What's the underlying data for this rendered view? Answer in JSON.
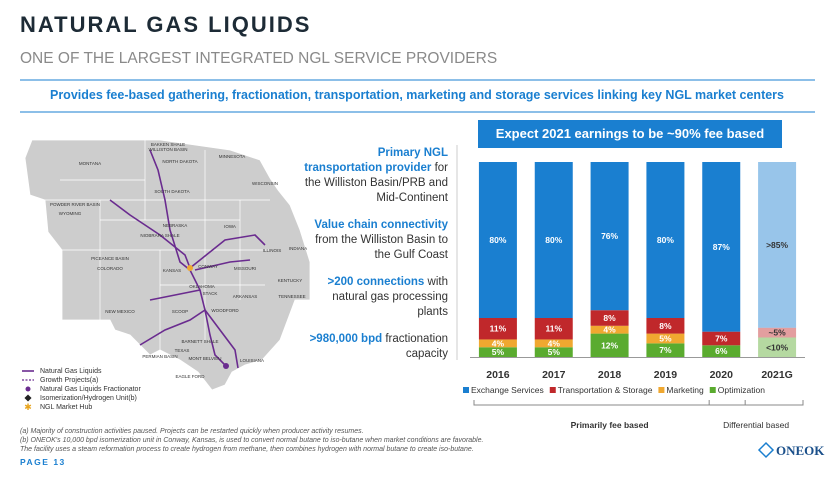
{
  "header": {
    "title": "NATURAL GAS LIQUIDS",
    "subtitle": "ONE OF THE LARGEST INTEGRATED NGL SERVICE PROVIDERS",
    "tagline": "Provides fee-based gathering, fractionation, transportation, marketing and storage services linking key NGL market centers"
  },
  "map": {
    "labels": [
      "BAKKEN SHALE",
      "WILLISTON BASIN",
      "MONTANA",
      "NORTH DAKOTA",
      "MINNESOTA",
      "SOUTH DAKOTA",
      "WISCONSIN",
      "POWDER RIVER BASIN",
      "WYOMING",
      "NEBRASKA",
      "NIOBRARA SHALE",
      "IOWA",
      "ILLINOIS",
      "INDIANA",
      "PICEANCE BASIN",
      "COLORADO",
      "KANSAS",
      "CONWAY",
      "MISSOURI",
      "KENTUCKY",
      "OKLAHOMA",
      "STACK",
      "ARKANSAS",
      "TENNESSEE",
      "NEW MEXICO",
      "SCOOP",
      "WOODFORD",
      "BARNETT SHALE",
      "TEXAS",
      "PERMIAN BASIN",
      "MONT BELVIEU",
      "LOUISIANA",
      "EAGLE FORD"
    ],
    "legend": [
      "Natural Gas Liquids",
      "Growth Projects(a)",
      "Natural Gas Liquids Fractionator",
      "Isomerization/Hydrogen Unit(b)",
      "NGL Market Hub"
    ]
  },
  "highlights": [
    {
      "bold": "Primary NGL transportation provider",
      "text": "for the Williston Basin/PRB and Mid-Continent"
    },
    {
      "bold": "Value chain connectivity",
      "text": "from the Williston Basin to the Gulf Coast"
    },
    {
      "bold": ">200 connections",
      "text": "with natural gas processing plants"
    },
    {
      "bold": ">980,000 bpd",
      "text": "fractionation capacity"
    }
  ],
  "chart_data": {
    "type": "stacked_bar",
    "title": "Expect 2021 earnings to be ~90% fee based",
    "categories": [
      "2016",
      "2017",
      "2018",
      "2019",
      "2020",
      "2021G"
    ],
    "series": [
      {
        "name": "Exchange Services",
        "color": "#1a7fd0",
        "values": [
          80,
          80,
          76,
          80,
          87,
          85
        ],
        "value_labels": [
          "80%",
          "80%",
          "76%",
          "80%",
          "87%",
          ">85%"
        ]
      },
      {
        "name": "Transportation & Storage",
        "color": "#c0282b",
        "values": [
          11,
          11,
          8,
          8,
          7,
          5
        ],
        "value_labels": [
          "11%",
          "11%",
          "8%",
          "8%",
          "7%",
          "~5%"
        ]
      },
      {
        "name": "Marketing",
        "color": "#f0a830",
        "values": [
          4,
          4,
          4,
          5,
          0,
          0
        ],
        "value_labels": [
          "4%",
          "4%",
          "4%",
          "5%",
          null,
          null
        ]
      },
      {
        "name": "Optimization",
        "color": "#5aab2f",
        "values": [
          5,
          5,
          12,
          7,
          6,
          10
        ],
        "value_labels": [
          "5%",
          "5%",
          "12%",
          "7%",
          "6%",
          "<10%"
        ]
      }
    ],
    "groups": [
      "Primarily fee based",
      "Differential based"
    ]
  },
  "footnotes": [
    "(a) Majority of construction activities paused. Projects can be restarted quickly when producer activity resumes.",
    "(b) ONEOK's 10,000 bpd isomerization unit in Conway, Kansas, is used to convert normal butane to iso-butane when market conditions are favorable.",
    "The facility uses a steam reformation process to create hydrogen from methane, then combines hydrogen with normal butane to create iso-butane."
  ],
  "footer": {
    "page": "PAGE 13",
    "logo": "ONEOK"
  }
}
